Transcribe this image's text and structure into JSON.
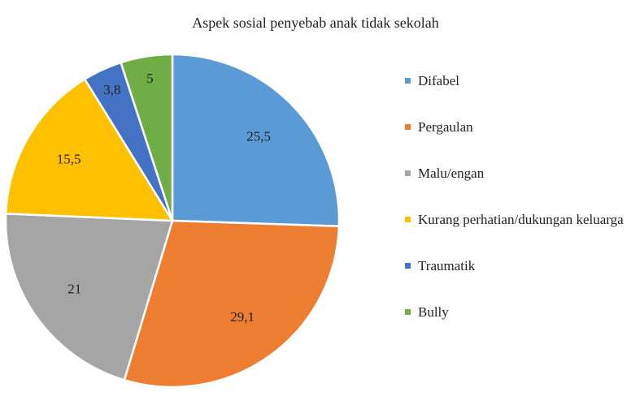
{
  "chart_data": {
    "type": "pie",
    "title": "Aspek sosial penyebab anak tidak sekolah",
    "categories": [
      "Difabel",
      "Pergaulan",
      "Malu/engan",
      "Kurang perhatian/dukungan keluarga",
      "Traumatik",
      "Bully"
    ],
    "values": [
      25.5,
      29.1,
      21,
      15.5,
      3.8,
      5
    ],
    "value_labels": [
      "25,5",
      "29,1",
      "21",
      "15,5",
      "3,8",
      "5"
    ],
    "colors": [
      "#5b9bd5",
      "#ed7d31",
      "#a5a5a5",
      "#ffc000",
      "#4472c4",
      "#70ad47"
    ],
    "legend": "right"
  }
}
